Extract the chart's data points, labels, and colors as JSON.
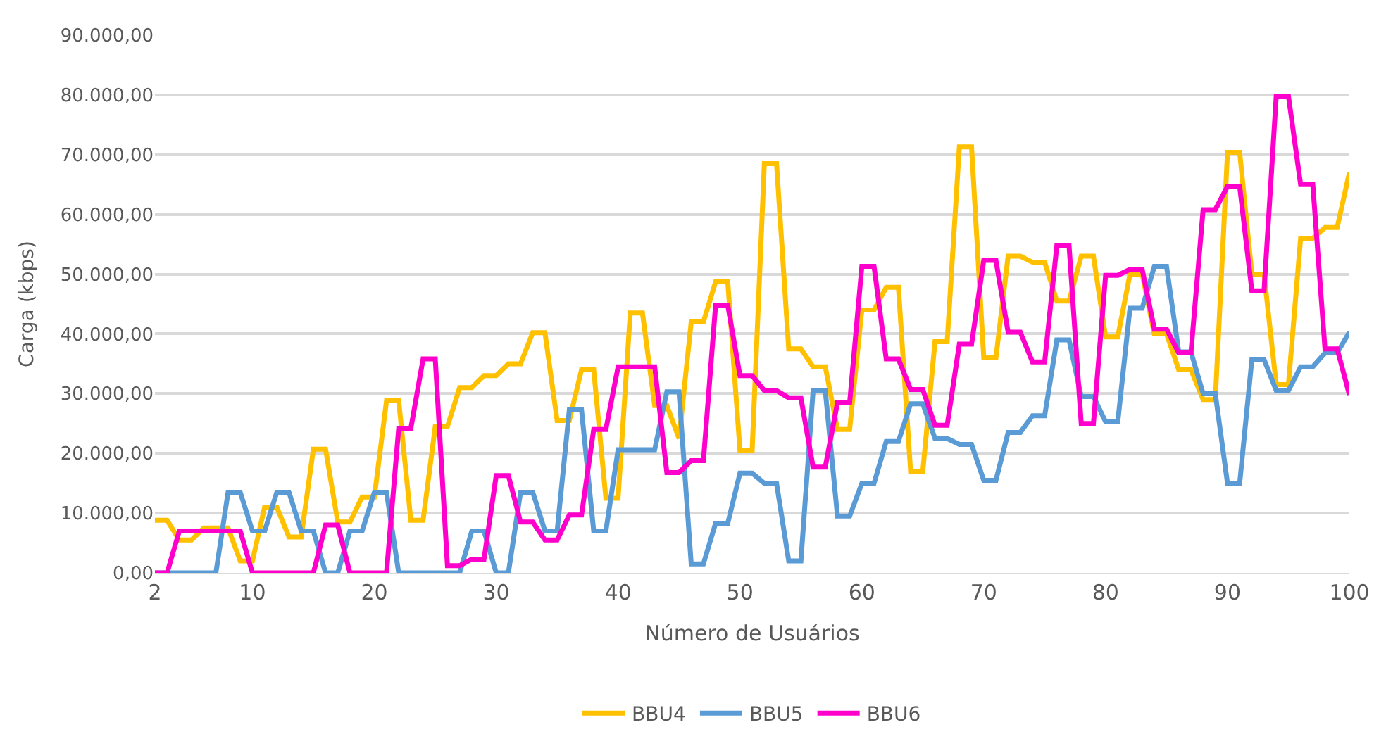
{
  "chart_data": {
    "type": "line",
    "xlabel": "Número de Usuários",
    "ylabel": "Carga (kbps)",
    "x": [
      2,
      3,
      4,
      5,
      6,
      7,
      8,
      9,
      10,
      11,
      12,
      13,
      14,
      15,
      16,
      17,
      18,
      19,
      20,
      21,
      22,
      23,
      24,
      25,
      26,
      27,
      28,
      29,
      30,
      31,
      32,
      33,
      34,
      35,
      36,
      37,
      38,
      39,
      40,
      41,
      42,
      43,
      44,
      45,
      46,
      47,
      48,
      49,
      50,
      51,
      52,
      53,
      54,
      55,
      56,
      57,
      58,
      59,
      60,
      61,
      62,
      63,
      64,
      65,
      66,
      67,
      68,
      69,
      70,
      71,
      72,
      73,
      74,
      75,
      76,
      77,
      78,
      79,
      80,
      81,
      82,
      83,
      84,
      85,
      86,
      87,
      88,
      89,
      90,
      91,
      92,
      93,
      94,
      95,
      96,
      97,
      98,
      99,
      100
    ],
    "series": [
      {
        "name": "BBU4",
        "color": "#ffc000",
        "values": [
          8800,
          8800,
          5500,
          5500,
          7500,
          7500,
          7500,
          2000,
          2000,
          11000,
          11000,
          6000,
          6000,
          20700,
          20700,
          8500,
          8500,
          12700,
          12700,
          28800,
          28800,
          8800,
          8800,
          24500,
          24500,
          31000,
          31000,
          33000,
          33000,
          35000,
          35000,
          40200,
          40200,
          25500,
          25500,
          34000,
          34000,
          12500,
          12500,
          43500,
          43500,
          28000,
          28000,
          22500,
          42000,
          42000,
          48700,
          48700,
          20500,
          20500,
          68500,
          68500,
          37500,
          37500,
          34500,
          34500,
          24000,
          24000,
          44000,
          44000,
          47800,
          47800,
          17000,
          17000,
          38700,
          38700,
          71300,
          71300,
          36000,
          36000,
          53000,
          53000,
          52000,
          52000,
          45500,
          45500,
          53000,
          53000,
          39500,
          39500,
          50000,
          50000,
          40000,
          40000,
          34000,
          34000,
          29000,
          29000,
          70400,
          70400,
          50000,
          50000,
          31500,
          31500,
          56000,
          56000,
          57800,
          57800,
          67000
        ]
      },
      {
        "name": "BBU5",
        "color": "#5b9bd5",
        "values": [
          0,
          0,
          0,
          0,
          0,
          0,
          13500,
          13500,
          7000,
          7000,
          13500,
          13500,
          7000,
          7000,
          0,
          0,
          7000,
          7000,
          13500,
          13500,
          0,
          0,
          0,
          0,
          0,
          0,
          7000,
          7000,
          0,
          0,
          13500,
          13500,
          7000,
          7000,
          27300,
          27300,
          7000,
          7000,
          20600,
          20600,
          20600,
          20600,
          30300,
          30300,
          1500,
          1500,
          8300,
          8300,
          16700,
          16700,
          15000,
          15000,
          2000,
          2000,
          30500,
          30500,
          9500,
          9500,
          15000,
          15000,
          22000,
          22000,
          28300,
          28300,
          22500,
          22500,
          21500,
          21500,
          15500,
          15500,
          23500,
          23500,
          26300,
          26300,
          39000,
          39000,
          29500,
          29500,
          25300,
          25300,
          44300,
          44300,
          51300,
          51300,
          37000,
          37000,
          30000,
          30000,
          15000,
          15000,
          35700,
          35700,
          30500,
          30500,
          34500,
          34500,
          36800,
          36800,
          40300
        ]
      },
      {
        "name": "BBU6",
        "color": "#ff00cc",
        "values": [
          0,
          0,
          7000,
          7000,
          7000,
          7000,
          7000,
          7000,
          0,
          0,
          0,
          0,
          0,
          0,
          8000,
          8000,
          0,
          0,
          0,
          0,
          24200,
          24200,
          35800,
          35800,
          1200,
          1200,
          2300,
          2300,
          16300,
          16300,
          8500,
          8500,
          5500,
          5500,
          9700,
          9700,
          24000,
          24000,
          34500,
          34500,
          34500,
          34500,
          16800,
          16800,
          18800,
          18800,
          44800,
          44800,
          33000,
          33000,
          30500,
          30500,
          29300,
          29300,
          17700,
          17700,
          28500,
          28500,
          51300,
          51300,
          35800,
          35800,
          30700,
          30700,
          24700,
          24700,
          38300,
          38300,
          52300,
          52300,
          40300,
          40300,
          35300,
          35300,
          54800,
          54800,
          25000,
          25000,
          49800,
          49800,
          50800,
          50800,
          40800,
          40800,
          36800,
          36800,
          60800,
          60800,
          64700,
          64700,
          47200,
          47200,
          79800,
          79800,
          65000,
          65000,
          37500,
          37500,
          29800
        ]
      }
    ],
    "xlim": [
      2,
      100
    ],
    "xticks": [
      2,
      10,
      20,
      30,
      40,
      50,
      60,
      70,
      80,
      90,
      100
    ],
    "ylim": [
      0,
      90000
    ],
    "yticks": [
      {
        "value": 0,
        "label": "0,00"
      },
      {
        "value": 10000,
        "label": "10.000,00"
      },
      {
        "value": 20000,
        "label": "20.000,00"
      },
      {
        "value": 30000,
        "label": "30.000,00"
      },
      {
        "value": 40000,
        "label": "40.000,00"
      },
      {
        "value": 50000,
        "label": "50.000,00"
      },
      {
        "value": 60000,
        "label": "60.000,00"
      },
      {
        "value": 70000,
        "label": "70.000,00"
      },
      {
        "value": 80000,
        "label": "80.000,00"
      },
      {
        "value": 90000,
        "label": "90.000,00"
      }
    ],
    "grid": "y",
    "legend": "bottom",
    "marker": "none",
    "line_style": "solid"
  }
}
